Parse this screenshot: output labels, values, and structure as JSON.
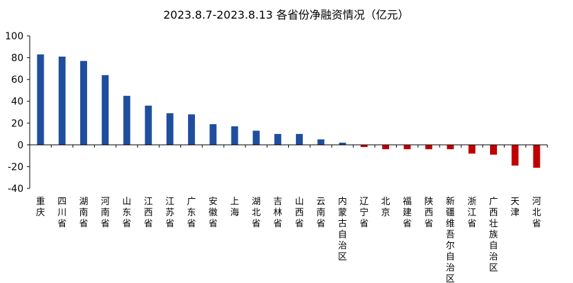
{
  "chart_data": {
    "type": "bar",
    "title": "2023.8.7-2023.8.13 各省份净融资情况（亿元）",
    "xlabel": "",
    "ylabel": "",
    "ylim": [
      -40,
      100
    ],
    "yticks": [
      -40,
      -20,
      0,
      20,
      40,
      60,
      80,
      100
    ],
    "categories": [
      "重庆",
      "四川省",
      "湖南省",
      "河南省",
      "山东省",
      "江西省",
      "江苏省",
      "广东省",
      "安徽省",
      "上海",
      "湖北省",
      "吉林省",
      "山西省",
      "云南省",
      "内蒙古自治区",
      "辽宁省",
      "北京",
      "福建省",
      "陕西省",
      "新疆维吾尔自治区",
      "浙江省",
      "广西壮族自治区",
      "天津",
      "河北省"
    ],
    "values": [
      83,
      81,
      77,
      64,
      45,
      36,
      29,
      28,
      19,
      17,
      13,
      10,
      10,
      5,
      2,
      -2,
      -4,
      -4,
      -4,
      -4,
      -8,
      -9,
      -19,
      -21
    ],
    "grid": false,
    "legend": "none",
    "colors": {
      "positive": "#1f4e9e",
      "negative": "#c00000",
      "axis": "#000000"
    }
  }
}
